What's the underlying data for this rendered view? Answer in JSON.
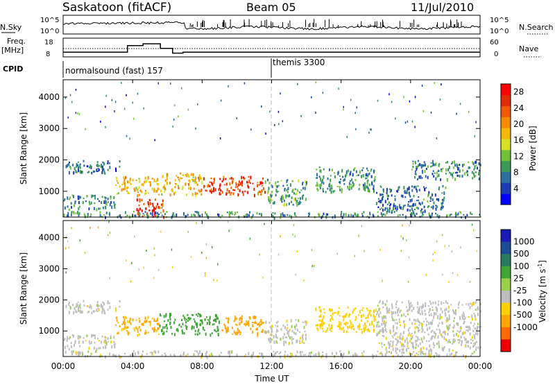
{
  "header": {
    "radar": "Saskatoon (fitACF)",
    "beam": "Beam 05",
    "date": "11/Jul/2010"
  },
  "side_labels": {
    "nsky": "N.Sky",
    "freq_line1": "Freq.",
    "freq_line2": "[MHz]",
    "cpid": "CPID",
    "nsearch": "N.Search",
    "nave": "Nave"
  },
  "nsky_axis": {
    "top": "10^5",
    "bottom": "10^0"
  },
  "freq_axis": {
    "top": "18",
    "bottom": "8"
  },
  "nave_axis": {
    "top": "60",
    "bottom": "0"
  },
  "cpid_segments": [
    {
      "label": "normalsound (fast) 157"
    },
    {
      "label": "themis 3300"
    }
  ],
  "time_axis": {
    "title": "Time UT",
    "ticks": [
      "00:00",
      "04:00",
      "08:00",
      "12:00",
      "16:00",
      "20:00",
      "00:00"
    ]
  },
  "colors": {
    "power": [
      "#0000ff",
      "#1c3cb4",
      "#2f6f9f",
      "#3a9a57",
      "#6ec23a",
      "#d7e021",
      "#f5b800",
      "#f58c00",
      "#f05a00",
      "#e22a00",
      "#ff0000"
    ],
    "velocity": [
      "#ee0000",
      "#ff6a00",
      "#ffa500",
      "#ffd000",
      "#bebebe",
      "#9ad14a",
      "#3fa535",
      "#2a7a60",
      "#1c4b98",
      "#1a1ab4"
    ]
  },
  "chart_data": [
    {
      "type": "heatmap",
      "panel": "power",
      "ylabel": "Slant Range [km]",
      "xlabel": "Time UT",
      "yticks": [
        1000,
        2000,
        3000,
        4000
      ],
      "ylim": [
        180,
        4550
      ],
      "xlim_hours": [
        0,
        24
      ],
      "colorbar": {
        "label": "Power [dB]",
        "ticks": [
          4,
          8,
          12,
          16,
          20,
          24,
          28
        ],
        "range": [
          0,
          30
        ]
      },
      "echo_regions": [
        {
          "t_start": 0.0,
          "t_end": 3.3,
          "r_min": 1600,
          "r_max": 2000,
          "value": 6
        },
        {
          "t_start": 0.0,
          "t_end": 3.0,
          "r_min": 450,
          "r_max": 900,
          "value": 8
        },
        {
          "t_start": 3.0,
          "t_end": 5.5,
          "r_min": 900,
          "r_max": 1500,
          "value": 18
        },
        {
          "t_start": 4.2,
          "t_end": 5.8,
          "r_min": 200,
          "r_max": 800,
          "value": 27
        },
        {
          "t_start": 5.5,
          "t_end": 8.0,
          "r_min": 900,
          "r_max": 1600,
          "value": 18
        },
        {
          "t_start": 8.0,
          "t_end": 11.6,
          "r_min": 900,
          "r_max": 1500,
          "value": 26
        },
        {
          "t_start": 11.6,
          "t_end": 14.0,
          "r_min": 600,
          "r_max": 1400,
          "value": 10
        },
        {
          "t_start": 14.5,
          "t_end": 18.0,
          "r_min": 1000,
          "r_max": 1800,
          "value": 8
        },
        {
          "t_start": 18.0,
          "t_end": 22.0,
          "r_min": 400,
          "r_max": 1200,
          "value": 6
        },
        {
          "t_start": 20.0,
          "t_end": 24.0,
          "r_min": 1400,
          "r_max": 2000,
          "value": 8
        },
        {
          "t_start": 0.0,
          "t_end": 24.0,
          "r_min": 200,
          "r_max": 380,
          "value": 8
        }
      ]
    },
    {
      "type": "heatmap",
      "panel": "velocity",
      "ylabel": "Slant Range [km]",
      "xlabel": "Time UT",
      "yticks": [
        1000,
        2000,
        3000,
        4000
      ],
      "ylim": [
        180,
        4550
      ],
      "xlim_hours": [
        0,
        24
      ],
      "colorbar": {
        "label": "Velocity [m s^-1]",
        "ticks": [
          1000,
          500,
          100,
          25,
          -25,
          -100,
          -500,
          -1000
        ]
      },
      "echo_regions": [
        {
          "t_start": 0.0,
          "t_end": 3.3,
          "r_min": 1600,
          "r_max": 2000,
          "value": 0
        },
        {
          "t_start": 0.0,
          "t_end": 3.0,
          "r_min": 450,
          "r_max": 900,
          "value": 0
        },
        {
          "t_start": 3.0,
          "t_end": 5.5,
          "r_min": 900,
          "r_max": 1500,
          "value": -120
        },
        {
          "t_start": 5.5,
          "t_end": 9.0,
          "r_min": 900,
          "r_max": 1600,
          "value": 200
        },
        {
          "t_start": 9.0,
          "t_end": 11.6,
          "r_min": 900,
          "r_max": 1500,
          "value": -200
        },
        {
          "t_start": 11.6,
          "t_end": 14.0,
          "r_min": 600,
          "r_max": 1400,
          "value": 0
        },
        {
          "t_start": 14.5,
          "t_end": 18.0,
          "r_min": 1000,
          "r_max": 1800,
          "value": -60
        },
        {
          "t_start": 18.0,
          "t_end": 24.0,
          "r_min": 400,
          "r_max": 2000,
          "value": 0
        },
        {
          "t_start": 0.0,
          "t_end": 24.0,
          "r_min": 200,
          "r_max": 380,
          "value": 0
        }
      ]
    }
  ],
  "frequency_series": {
    "hours": [
      0,
      3.7,
      3.7,
      4.6,
      4.6,
      5.6,
      5.6,
      6.3,
      6.3,
      6.9,
      6.9,
      24
    ],
    "mhz": [
      10.5,
      10.5,
      14,
      14,
      15,
      15,
      12.5,
      12.5,
      10,
      10,
      10.5,
      10.5
    ]
  }
}
